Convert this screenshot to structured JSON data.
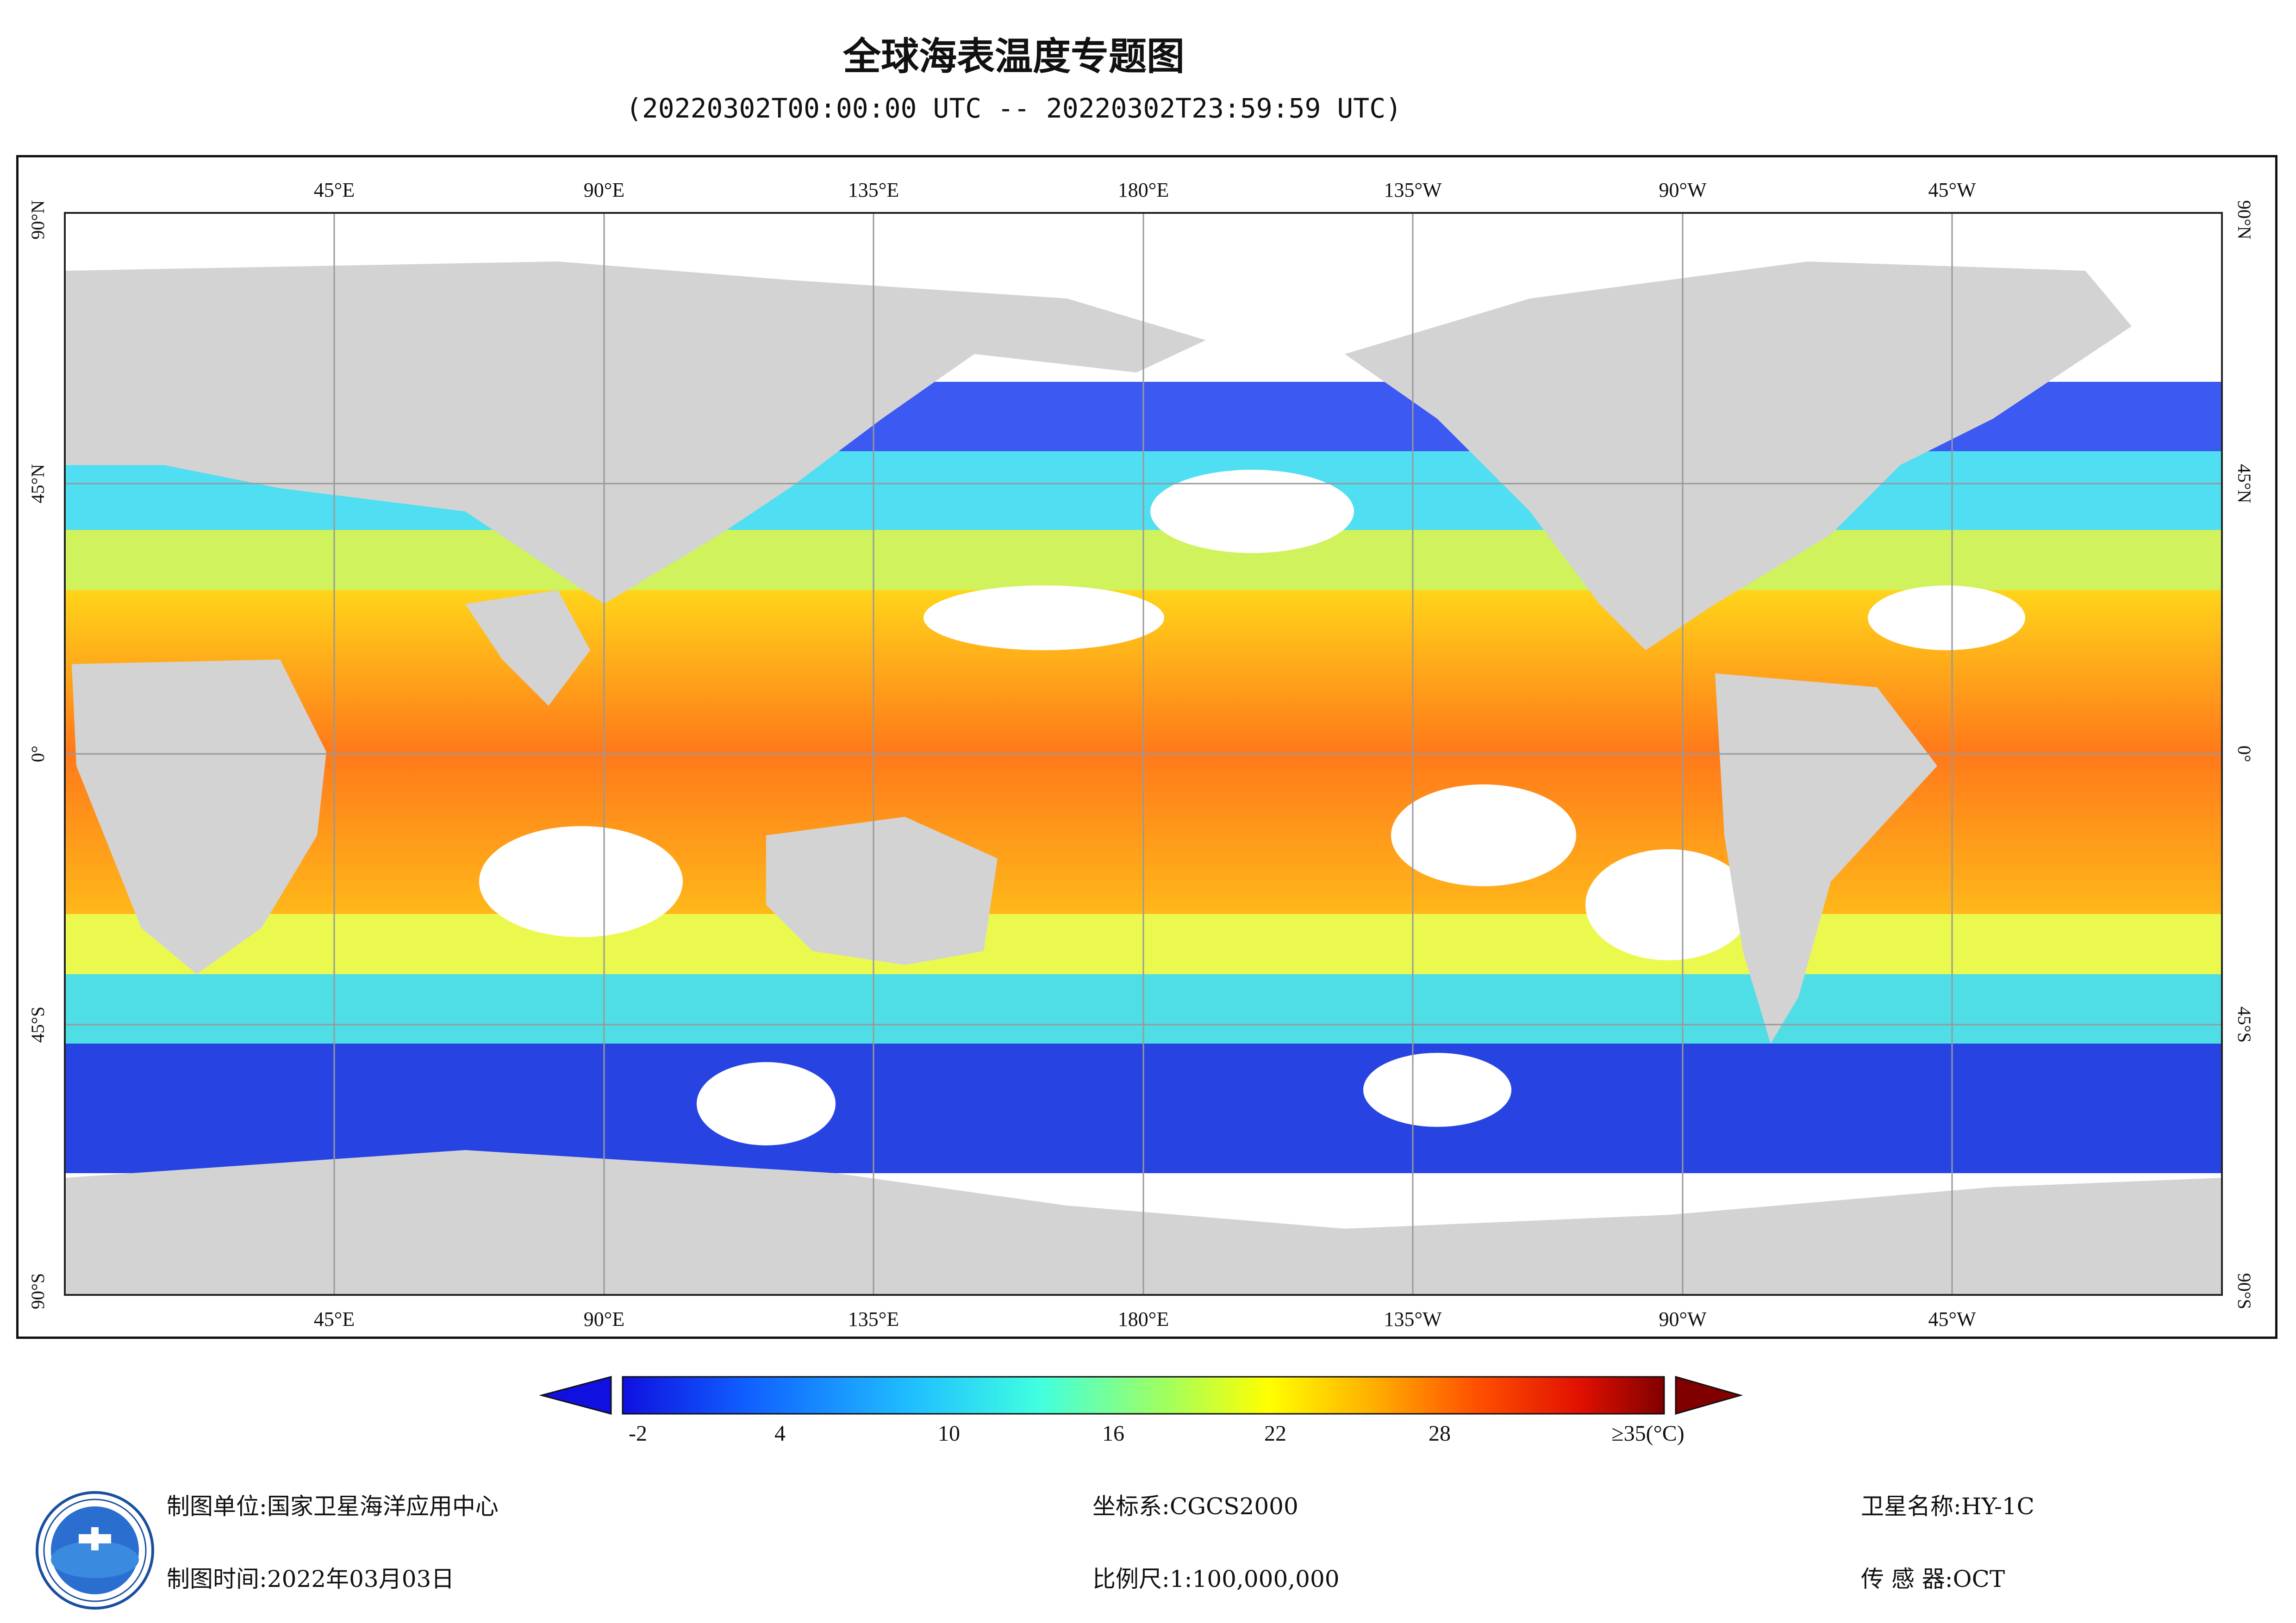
{
  "header": {
    "title": "全球海表温度专题图",
    "subtitle": "(20220302T00:00:00 UTC -- 20220302T23:59:59 UTC)"
  },
  "map": {
    "projection": "equirectangular",
    "lon_labels_top": [
      "45°E",
      "90°E",
      "135°E",
      "180°E",
      "135°W",
      "90°W",
      "45°W"
    ],
    "lon_labels_bottom": [
      "45°E",
      "90°E",
      "135°E",
      "180°E",
      "135°W",
      "90°W",
      "45°W"
    ],
    "lat_labels_left": [
      "90°N",
      "45°N",
      "0°",
      "45°S",
      "90°S"
    ],
    "lat_labels_right": [
      "90°N",
      "45°N",
      "0°",
      "45°S",
      "90°S"
    ],
    "land_color": "#d3d3d3",
    "no_data_color": "#ffffff"
  },
  "legend": {
    "unit": "(°C)",
    "ticks": [
      "-2",
      "4",
      "10",
      "16",
      "22",
      "28",
      "≥35(°C)"
    ],
    "min": -2,
    "max": 35,
    "colors": [
      "#1010e0",
      "#1060ff",
      "#20c0ff",
      "#40ffe0",
      "#a0ff60",
      "#ffff00",
      "#ffb000",
      "#ff5000",
      "#e01000",
      "#800000"
    ]
  },
  "footer": {
    "producer_label": "制图单位:国家卫星海洋应用中心",
    "date_label": "制图时间:2022年03月03日",
    "crs_label": "坐标系:CGCS2000",
    "scale_label": "比例尺:1:100,000,000",
    "satellite_label": "卫星名称:HY-1C",
    "sensor_label": "传 感 器:OCT"
  },
  "logo": {
    "icon": "nsoas-logo-icon",
    "text": "NATIONAL SATELLITE OCEAN APPLICATION SERVICE"
  }
}
